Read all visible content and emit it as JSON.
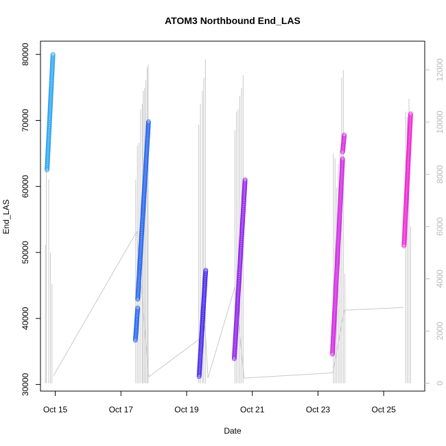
{
  "chart_data": {
    "type": "scatter",
    "title": "ATOM3 Northbound End_LAS",
    "xlabel": "Date",
    "ylabel": "End_LAS",
    "ylabel_right": "",
    "x_ticks": [
      "Oct 15",
      "Oct 17",
      "Oct 19",
      "Oct 21",
      "Oct 23",
      "Oct 25"
    ],
    "xlim_days": [
      14.55,
      26.25
    ],
    "ylim": [
      29000,
      82000
    ],
    "y_ticks": [
      30000,
      40000,
      50000,
      60000,
      70000,
      80000
    ],
    "y2lim": [
      -300,
      13100
    ],
    "y2_ticks": [
      0,
      2000,
      4000,
      6000,
      8000,
      10000,
      12000
    ],
    "colors": {
      "background_series": "#c8c8c8",
      "right_axis": "#b8b8b8"
    },
    "series": [
      {
        "x_start": 14.75,
        "x_end": 14.93,
        "y_start": 62500,
        "y_end": 80000,
        "color": "#1a9cf0"
      },
      {
        "x_start": 17.44,
        "x_end": 17.51,
        "y_start": 36700,
        "y_end": 41600,
        "color": "#1a5cf0"
      },
      {
        "x_start": 17.51,
        "x_end": 17.84,
        "y_start": 42900,
        "y_end": 69800,
        "color": "#1a5cf0"
      },
      {
        "x_start": 19.38,
        "x_end": 19.58,
        "y_start": 31200,
        "y_end": 47300,
        "color": "#3b1aee"
      },
      {
        "x_start": 20.45,
        "x_end": 20.78,
        "y_start": 33900,
        "y_end": 61000,
        "color": "#8a14ec"
      },
      {
        "x_start": 23.44,
        "x_end": 23.75,
        "y_start": 34600,
        "y_end": 64200,
        "color": "#d21ae6"
      },
      {
        "x_start": 23.75,
        "x_end": 23.8,
        "y_start": 65200,
        "y_end": 67800,
        "color": "#d21ae6"
      },
      {
        "x_start": 25.62,
        "x_end": 25.82,
        "y_start": 51000,
        "y_end": 71000,
        "color": "#ee14d2"
      }
    ],
    "background_series": {
      "spikes": [
        [
          14.7,
          5300
        ],
        [
          14.73,
          8300
        ],
        [
          14.8,
          7800
        ],
        [
          14.85,
          5000
        ],
        [
          14.9,
          3800
        ],
        [
          17.45,
          7800
        ],
        [
          17.5,
          9100
        ],
        [
          17.55,
          9200
        ],
        [
          17.6,
          10500
        ],
        [
          17.65,
          10700
        ],
        [
          17.68,
          11200
        ],
        [
          17.72,
          11300
        ],
        [
          17.76,
          11600
        ],
        [
          17.8,
          12100
        ],
        [
          17.83,
          12200
        ],
        [
          19.37,
          9900
        ],
        [
          19.42,
          10700
        ],
        [
          19.48,
          11200
        ],
        [
          19.52,
          11700
        ],
        [
          19.57,
          12400
        ],
        [
          20.47,
          9700
        ],
        [
          20.52,
          10400
        ],
        [
          20.57,
          10500
        ],
        [
          20.62,
          11000
        ],
        [
          20.67,
          11300
        ],
        [
          20.72,
          11800
        ],
        [
          23.47,
          8800
        ],
        [
          23.52,
          8600
        ],
        [
          23.57,
          7500
        ],
        [
          23.62,
          8400
        ],
        [
          23.67,
          8900
        ],
        [
          23.72,
          11700
        ],
        [
          23.77,
          12000
        ],
        [
          23.82,
          4200
        ],
        [
          25.67,
          10400
        ],
        [
          25.72,
          10200
        ],
        [
          25.77,
          10900
        ],
        [
          25.82,
          6000
        ]
      ],
      "path": [
        [
          14.95,
          300
        ],
        [
          17.48,
          5800
        ],
        [
          17.85,
          250
        ],
        [
          19.5,
          1800
        ],
        [
          19.56,
          2200
        ],
        [
          19.65,
          200
        ],
        [
          20.47,
          3700
        ],
        [
          20.75,
          200
        ],
        [
          23.45,
          400
        ],
        [
          23.8,
          2800
        ],
        [
          25.6,
          2900
        ]
      ]
    }
  }
}
